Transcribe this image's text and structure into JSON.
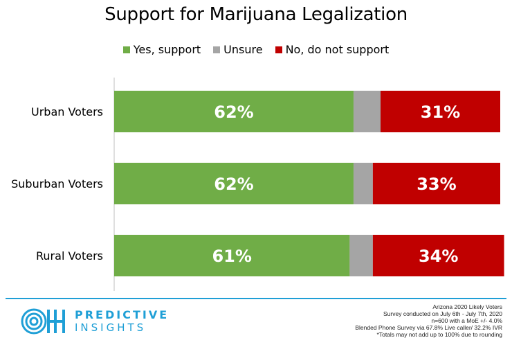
{
  "chart_data": {
    "type": "bar",
    "orientation": "horizontal",
    "stacked": true,
    "title": "Support for Marijuana Legalization",
    "categories": [
      "Urban Voters",
      "Suburban Voters",
      "Rural Voters"
    ],
    "series": [
      {
        "name": "Yes, support",
        "values": [
          62,
          62,
          61
        ],
        "color": "#70ad47",
        "labels": [
          "62%",
          "62%",
          "61%"
        ]
      },
      {
        "name": "Unsure",
        "values": [
          7,
          5,
          6
        ],
        "color": "#a5a5a5",
        "labels": [
          "",
          "",
          ""
        ]
      },
      {
        "name": "No, do not support",
        "values": [
          31,
          33,
          34
        ],
        "color": "#c00000",
        "labels": [
          "31%",
          "33%",
          "34%"
        ]
      }
    ],
    "xlim": [
      0,
      100
    ],
    "grid": false,
    "legend_position": "top"
  },
  "footer": {
    "logo_line1": "PREDICTIVE",
    "logo_line2": "INSIGHTS",
    "notes": [
      "Arizona 2020 Likely Voters",
      "Survey conducted on July 6th - July 7th, 2020",
      "n=600 with a MoE +/- 4.0%",
      "Blended Phone Survey via 67.8% Live caller/ 32.2% IVR",
      "*Totals may not add up to 100% due to rounding"
    ]
  }
}
